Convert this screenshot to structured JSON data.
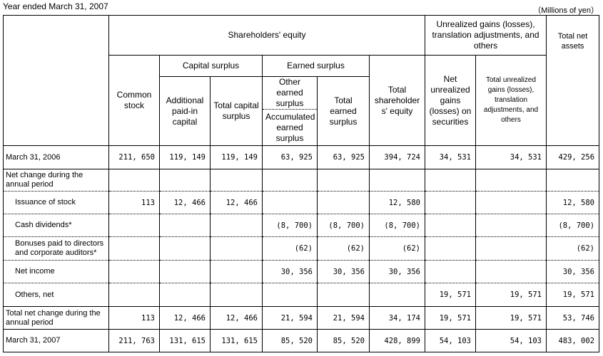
{
  "caption_left": "Year ended March 31, 2007",
  "caption_right": "（Millions of yen）",
  "headers": {
    "shareholders_equity": "Shareholders' equity",
    "unrealized_group": "Unrealized gains (losses), translation adjustments, and others",
    "common_stock": "Common stock",
    "capital_surplus": "Capital surplus",
    "additional_paid_in": "Additional paid-in capital",
    "total_capital_surplus": "Total capital surplus",
    "earned_surplus": "Earned surplus",
    "other_earned_surplus": "Other earned surplus",
    "accumulated_earned_surplus": "Accumulated earned surplus",
    "total_earned_surplus": "Total earned surplus",
    "total_shareholders_equity": "Total shareholder s' equity",
    "net_unrealized_gains": "Net unrealized gains (losses) on securities",
    "total_unrealized": "Total unrealized gains (losses), translation adjustments, and others",
    "total_net_assets": "Total net assets"
  },
  "rows": [
    {
      "label": "March 31, 2006",
      "cells": [
        "211, 650",
        "119, 149",
        "119, 149",
        "63, 925",
        "63, 925",
        "394, 724",
        "34, 531",
        "34, 531",
        "429, 256"
      ]
    },
    {
      "label": "Net change during the annual period",
      "cells": [
        "",
        "",
        "",
        "",
        "",
        "",
        "",
        "",
        ""
      ]
    },
    {
      "label": "Issuance of stock",
      "cells": [
        "113",
        "12, 466",
        "12, 466",
        "",
        "",
        "12, 580",
        "",
        "",
        "12, 580"
      ]
    },
    {
      "label": "Cash dividends*",
      "cells": [
        "",
        "",
        "",
        "(8, 700)",
        "(8, 700)",
        "(8, 700)",
        "",
        "",
        "(8, 700)"
      ]
    },
    {
      "label": "Bonuses paid to directors and corporate auditors*",
      "cells": [
        "",
        "",
        "",
        "(62)",
        "(62)",
        "(62)",
        "",
        "",
        "(62)"
      ]
    },
    {
      "label": "Net income",
      "cells": [
        "",
        "",
        "",
        "30, 356",
        "30, 356",
        "30, 356",
        "",
        "",
        "30, 356"
      ]
    },
    {
      "label": "Others, net",
      "cells": [
        "",
        "",
        "",
        "",
        "",
        "",
        "19, 571",
        "19, 571",
        "19, 571"
      ]
    },
    {
      "label": "Total net change during the annual period",
      "cells": [
        "113",
        "12, 466",
        "12, 466",
        "21, 594",
        "21, 594",
        "34, 174",
        "19, 571",
        "19, 571",
        "53, 746"
      ]
    },
    {
      "label": "March 31, 2007",
      "cells": [
        "211, 763",
        "131, 615",
        "131, 615",
        "85, 520",
        "85, 520",
        "428, 899",
        "54, 103",
        "54, 103",
        "483, 002"
      ]
    }
  ]
}
